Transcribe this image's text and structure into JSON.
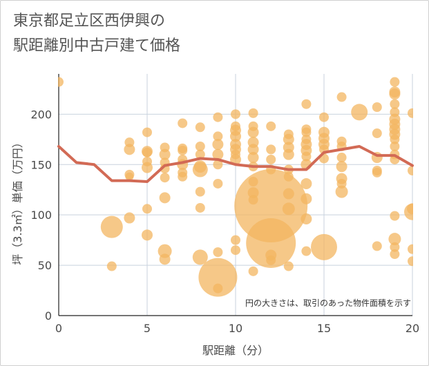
{
  "title_lines": [
    "東京都足立区西伊興の",
    "駅距離別中古戸建て価格"
  ],
  "chart_data": {
    "type": "scatter",
    "title": "東京都足立区西伊興の駅距離別中古戸建て価格",
    "xlabel": "駅距離（分）",
    "ylabel": "坪（3.3㎡）単価（万円）",
    "xlim": [
      0,
      20
    ],
    "ylim": [
      0,
      240
    ],
    "xticks": [
      0,
      5,
      10,
      15,
      20
    ],
    "yticks": [
      0,
      50,
      100,
      150,
      200
    ],
    "grid": true,
    "note": "円の大きさは、取引のあった物件面積を示す",
    "colors": {
      "bubble": "#f3b560",
      "line": "#d26a55",
      "grid": "#c8d2de"
    },
    "line": {
      "x": [
        0,
        1,
        2,
        3,
        4,
        5,
        6,
        7,
        8,
        9,
        10,
        11,
        12,
        13,
        14,
        15,
        16,
        17,
        18,
        19,
        20
      ],
      "y": [
        168,
        152,
        150,
        134,
        134,
        133,
        149,
        152,
        156,
        155,
        150,
        148,
        148,
        145,
        145,
        162,
        165,
        168,
        159,
        159,
        149
      ]
    },
    "bubbles": [
      {
        "x": 0,
        "y": 232,
        "r": 7
      },
      {
        "x": 3,
        "y": 49,
        "r": 7
      },
      {
        "x": 3,
        "y": 88,
        "r": 16
      },
      {
        "x": 4,
        "y": 172,
        "r": 7
      },
      {
        "x": 4,
        "y": 165,
        "r": 8
      },
      {
        "x": 4,
        "y": 140,
        "r": 7
      },
      {
        "x": 4,
        "y": 138,
        "r": 6
      },
      {
        "x": 4,
        "y": 97,
        "r": 8
      },
      {
        "x": 5,
        "y": 182,
        "r": 7
      },
      {
        "x": 5,
        "y": 163,
        "r": 8
      },
      {
        "x": 5,
        "y": 162,
        "r": 7
      },
      {
        "x": 5,
        "y": 153,
        "r": 7
      },
      {
        "x": 5,
        "y": 147,
        "r": 8
      },
      {
        "x": 5,
        "y": 106,
        "r": 7
      },
      {
        "x": 5,
        "y": 80,
        "r": 8
      },
      {
        "x": 6,
        "y": 167,
        "r": 7
      },
      {
        "x": 6,
        "y": 160,
        "r": 8
      },
      {
        "x": 6,
        "y": 152,
        "r": 7
      },
      {
        "x": 6,
        "y": 146,
        "r": 7
      },
      {
        "x": 6,
        "y": 137,
        "r": 7
      },
      {
        "x": 6,
        "y": 117,
        "r": 8
      },
      {
        "x": 6,
        "y": 64,
        "r": 10
      },
      {
        "x": 6,
        "y": 56,
        "r": 8
      },
      {
        "x": 7,
        "y": 191,
        "r": 7
      },
      {
        "x": 7,
        "y": 166,
        "r": 7
      },
      {
        "x": 7,
        "y": 164,
        "r": 7
      },
      {
        "x": 7,
        "y": 155,
        "r": 7
      },
      {
        "x": 7,
        "y": 150,
        "r": 8
      },
      {
        "x": 7,
        "y": 142,
        "r": 7
      },
      {
        "x": 7,
        "y": 138,
        "r": 7
      },
      {
        "x": 8,
        "y": 187,
        "r": 7
      },
      {
        "x": 8,
        "y": 168,
        "r": 7
      },
      {
        "x": 8,
        "y": 160,
        "r": 7
      },
      {
        "x": 8,
        "y": 148,
        "r": 9
      },
      {
        "x": 8,
        "y": 145,
        "r": 11
      },
      {
        "x": 8,
        "y": 123,
        "r": 7
      },
      {
        "x": 8,
        "y": 107,
        "r": 7
      },
      {
        "x": 8,
        "y": 58,
        "r": 11
      },
      {
        "x": 9,
        "y": 197,
        "r": 7
      },
      {
        "x": 9,
        "y": 178,
        "r": 7
      },
      {
        "x": 9,
        "y": 170,
        "r": 8
      },
      {
        "x": 9,
        "y": 160,
        "r": 8
      },
      {
        "x": 9,
        "y": 150,
        "r": 7
      },
      {
        "x": 9,
        "y": 131,
        "r": 7
      },
      {
        "x": 9,
        "y": 63,
        "r": 7
      },
      {
        "x": 9,
        "y": 38,
        "r": 28
      },
      {
        "x": 9,
        "y": 27,
        "r": 7
      },
      {
        "x": 10,
        "y": 200,
        "r": 7
      },
      {
        "x": 10,
        "y": 188,
        "r": 7
      },
      {
        "x": 10,
        "y": 184,
        "r": 8
      },
      {
        "x": 10,
        "y": 178,
        "r": 8
      },
      {
        "x": 10,
        "y": 170,
        "r": 8
      },
      {
        "x": 10,
        "y": 165,
        "r": 8
      },
      {
        "x": 10,
        "y": 160,
        "r": 7
      },
      {
        "x": 10,
        "y": 155,
        "r": 8
      },
      {
        "x": 10,
        "y": 75,
        "r": 7
      },
      {
        "x": 10,
        "y": 65,
        "r": 7
      },
      {
        "x": 11,
        "y": 201,
        "r": 7
      },
      {
        "x": 11,
        "y": 188,
        "r": 7
      },
      {
        "x": 11,
        "y": 182,
        "r": 8
      },
      {
        "x": 11,
        "y": 172,
        "r": 8
      },
      {
        "x": 11,
        "y": 165,
        "r": 8
      },
      {
        "x": 11,
        "y": 157,
        "r": 8
      },
      {
        "x": 11,
        "y": 148,
        "r": 7
      },
      {
        "x": 11,
        "y": 133,
        "r": 7
      },
      {
        "x": 11,
        "y": 122,
        "r": 8
      },
      {
        "x": 11,
        "y": 115,
        "r": 7
      },
      {
        "x": 11,
        "y": 44,
        "r": 7
      },
      {
        "x": 12,
        "y": 188,
        "r": 7
      },
      {
        "x": 12,
        "y": 165,
        "r": 7
      },
      {
        "x": 12,
        "y": 155,
        "r": 7
      },
      {
        "x": 12,
        "y": 145,
        "r": 7
      },
      {
        "x": 12,
        "y": 109,
        "r": 53
      },
      {
        "x": 12,
        "y": 72,
        "r": 36
      },
      {
        "x": 12,
        "y": 60,
        "r": 8
      },
      {
        "x": 12,
        "y": 55,
        "r": 7
      },
      {
        "x": 13,
        "y": 180,
        "r": 7
      },
      {
        "x": 13,
        "y": 175,
        "r": 8
      },
      {
        "x": 13,
        "y": 167,
        "r": 8
      },
      {
        "x": 13,
        "y": 160,
        "r": 8
      },
      {
        "x": 13,
        "y": 145,
        "r": 7
      },
      {
        "x": 13,
        "y": 138,
        "r": 7
      },
      {
        "x": 13,
        "y": 121,
        "r": 8
      },
      {
        "x": 13,
        "y": 106,
        "r": 9
      },
      {
        "x": 13,
        "y": 49,
        "r": 7
      },
      {
        "x": 14,
        "y": 210,
        "r": 7
      },
      {
        "x": 14,
        "y": 185,
        "r": 7
      },
      {
        "x": 14,
        "y": 182,
        "r": 7
      },
      {
        "x": 14,
        "y": 175,
        "r": 7
      },
      {
        "x": 14,
        "y": 170,
        "r": 8
      },
      {
        "x": 14,
        "y": 164,
        "r": 8
      },
      {
        "x": 14,
        "y": 158,
        "r": 7
      },
      {
        "x": 14,
        "y": 150,
        "r": 8
      },
      {
        "x": 14,
        "y": 131,
        "r": 8
      },
      {
        "x": 14,
        "y": 116,
        "r": 8
      },
      {
        "x": 14,
        "y": 96,
        "r": 8
      },
      {
        "x": 14,
        "y": 64,
        "r": 7
      },
      {
        "x": 15,
        "y": 197,
        "r": 7
      },
      {
        "x": 15,
        "y": 182,
        "r": 8
      },
      {
        "x": 15,
        "y": 176,
        "r": 8
      },
      {
        "x": 15,
        "y": 170,
        "r": 8
      },
      {
        "x": 15,
        "y": 165,
        "r": 7
      },
      {
        "x": 15,
        "y": 156,
        "r": 7
      },
      {
        "x": 15,
        "y": 68,
        "r": 19
      },
      {
        "x": 16,
        "y": 217,
        "r": 7
      },
      {
        "x": 16,
        "y": 173,
        "r": 7
      },
      {
        "x": 16,
        "y": 168,
        "r": 7
      },
      {
        "x": 16,
        "y": 157,
        "r": 7
      },
      {
        "x": 16,
        "y": 148,
        "r": 8
      },
      {
        "x": 16,
        "y": 136,
        "r": 8
      },
      {
        "x": 16,
        "y": 131,
        "r": 7
      },
      {
        "x": 16,
        "y": 123,
        "r": 9
      },
      {
        "x": 17,
        "y": 202,
        "r": 12
      },
      {
        "x": 18,
        "y": 207,
        "r": 7
      },
      {
        "x": 18,
        "y": 181,
        "r": 7
      },
      {
        "x": 18,
        "y": 157,
        "r": 8
      },
      {
        "x": 18,
        "y": 144,
        "r": 7
      },
      {
        "x": 18,
        "y": 142,
        "r": 7
      },
      {
        "x": 18,
        "y": 69,
        "r": 7
      },
      {
        "x": 19,
        "y": 232,
        "r": 7
      },
      {
        "x": 19,
        "y": 222,
        "r": 8
      },
      {
        "x": 19,
        "y": 220,
        "r": 8
      },
      {
        "x": 19,
        "y": 210,
        "r": 7
      },
      {
        "x": 19,
        "y": 202,
        "r": 7
      },
      {
        "x": 19,
        "y": 195,
        "r": 8
      },
      {
        "x": 19,
        "y": 190,
        "r": 8
      },
      {
        "x": 19,
        "y": 185,
        "r": 8
      },
      {
        "x": 19,
        "y": 180,
        "r": 8
      },
      {
        "x": 19,
        "y": 175,
        "r": 7
      },
      {
        "x": 19,
        "y": 168,
        "r": 7
      },
      {
        "x": 19,
        "y": 160,
        "r": 7
      },
      {
        "x": 19,
        "y": 155,
        "r": 7
      },
      {
        "x": 19,
        "y": 99,
        "r": 7
      },
      {
        "x": 19,
        "y": 76,
        "r": 9
      },
      {
        "x": 19,
        "y": 68,
        "r": 7
      },
      {
        "x": 19,
        "y": 61,
        "r": 7
      },
      {
        "x": 20,
        "y": 201,
        "r": 7
      },
      {
        "x": 20,
        "y": 144,
        "r": 7
      },
      {
        "x": 20,
        "y": 106,
        "r": 8
      },
      {
        "x": 20,
        "y": 103,
        "r": 12
      },
      {
        "x": 20,
        "y": 66,
        "r": 7
      },
      {
        "x": 20,
        "y": 54,
        "r": 7
      }
    ]
  }
}
